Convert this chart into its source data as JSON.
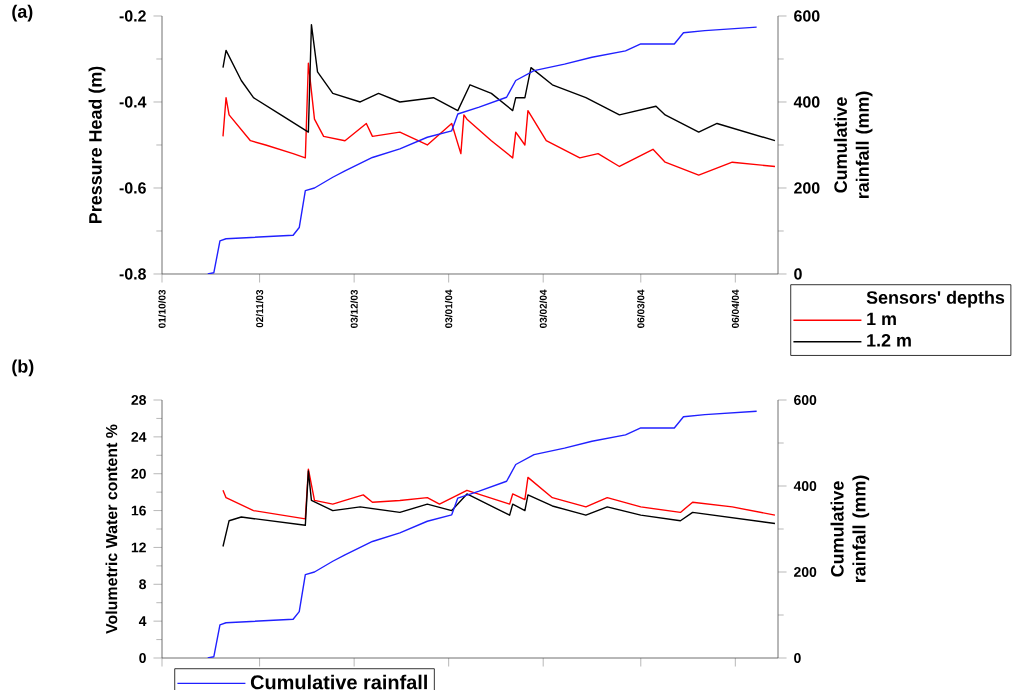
{
  "chart_data": [
    {
      "type": "line",
      "title": "(a)",
      "ylabel": "Pressure Head (m)",
      "y2label": "Cumulative rainfall (mm)",
      "legend_title": "Sensors' depths",
      "legend": "bottom right",
      "xlim": [
        "2003-10-01",
        "2004-04-20"
      ],
      "xticks": [
        {
          "value": "2003-10-01",
          "label": "01/10/03"
        },
        {
          "value": "2003-11-02",
          "label": "02/11/03"
        },
        {
          "value": "2003-12-03",
          "label": "03/12/03"
        },
        {
          "value": "2004-01-03",
          "label": "03/01/04"
        },
        {
          "value": "2004-02-03",
          "label": "03/02/04"
        },
        {
          "value": "2004-03-06",
          "label": "06/03/04"
        },
        {
          "value": "2004-04-06",
          "label": "06/04/04"
        }
      ],
      "ylim": [
        -0.8,
        -0.2
      ],
      "yticks": [
        -0.8,
        -0.6,
        -0.4,
        -0.2
      ],
      "y2lim": [
        0,
        600
      ],
      "y2ticks": [
        0,
        200,
        400,
        600
      ],
      "series": [
        {
          "name": "1 m",
          "color": "#ff0000",
          "x": [
            "2003-10-21",
            "2003-10-22",
            "2003-10-23",
            "2003-10-30",
            "2003-11-04",
            "2003-11-13",
            "2003-11-17",
            "2003-11-18",
            "2003-11-20",
            "2003-11-23",
            "2003-11-30",
            "2003-12-07",
            "2003-12-09",
            "2003-12-18",
            "2003-12-27",
            "2004-01-04",
            "2004-01-07",
            "2004-01-08",
            "2004-01-09",
            "2004-01-17",
            "2004-01-24",
            "2004-01-25",
            "2004-01-28",
            "2004-01-29",
            "2004-02-04",
            "2004-02-15",
            "2004-02-21",
            "2004-02-28",
            "2004-03-10",
            "2004-03-14",
            "2004-03-25",
            "2004-04-05",
            "2004-04-19"
          ],
          "values": [
            -0.48,
            -0.39,
            -0.43,
            -0.49,
            -0.5,
            -0.52,
            -0.53,
            -0.31,
            -0.44,
            -0.48,
            -0.49,
            -0.45,
            -0.48,
            -0.47,
            -0.5,
            -0.45,
            -0.52,
            -0.43,
            -0.44,
            -0.49,
            -0.53,
            -0.47,
            -0.5,
            -0.42,
            -0.49,
            -0.53,
            -0.52,
            -0.55,
            -0.51,
            -0.54,
            -0.57,
            -0.54,
            -0.55
          ]
        },
        {
          "name": "1.2 m",
          "color": "#000000",
          "x": [
            "2003-10-21",
            "2003-10-22",
            "2003-10-27",
            "2003-10-31",
            "2003-11-09",
            "2003-11-18",
            "2003-11-19",
            "2003-11-21",
            "2003-11-26",
            "2003-12-05",
            "2003-12-11",
            "2003-12-18",
            "2003-12-29",
            "2004-01-06",
            "2004-01-10",
            "2004-01-17",
            "2004-01-24",
            "2004-01-25",
            "2004-01-28",
            "2004-01-30",
            "2004-02-06",
            "2004-02-17",
            "2004-02-28",
            "2004-03-11",
            "2004-03-14",
            "2004-03-25",
            "2004-03-31",
            "2004-04-19"
          ],
          "values": [
            -0.32,
            -0.28,
            -0.35,
            -0.39,
            -0.43,
            -0.47,
            -0.22,
            -0.33,
            -0.38,
            -0.4,
            -0.38,
            -0.4,
            -0.39,
            -0.42,
            -0.36,
            -0.38,
            -0.42,
            -0.39,
            -0.39,
            -0.32,
            -0.36,
            -0.39,
            -0.43,
            -0.41,
            -0.43,
            -0.47,
            -0.45,
            -0.49
          ]
        },
        {
          "color": "#2020ff",
          "axis": "y2",
          "x": [
            "2003-10-16",
            "2003-10-18",
            "2003-10-20",
            "2003-10-22",
            "2003-11-13",
            "2003-11-15",
            "2003-11-17",
            "2003-11-20",
            "2003-11-26",
            "2003-11-30",
            "2003-12-09",
            "2003-12-18",
            "2003-12-27",
            "2004-01-04",
            "2004-01-06",
            "2004-01-13",
            "2004-01-22",
            "2004-01-25",
            "2004-01-31",
            "2004-02-10",
            "2004-02-19",
            "2004-03-01",
            "2004-03-06",
            "2004-03-17",
            "2004-03-20",
            "2004-03-27",
            "2004-04-13"
          ],
          "values": [
            0,
            3,
            77,
            82,
            90,
            108,
            194,
            200,
            225,
            240,
            271,
            291,
            318,
            333,
            372,
            388,
            411,
            450,
            473,
            488,
            504,
            519,
            535,
            535,
            561,
            566,
            574
          ]
        }
      ]
    },
    {
      "type": "line",
      "title": "(b)",
      "ylabel": "Volumetric Water content %",
      "y2label": "Cumulative rainfall (mm)",
      "legend": "bottom left",
      "tick_labels": "y",
      "xlim": [
        "2003-10-01",
        "2004-04-20"
      ],
      "xticks": [
        "2003-10-01",
        "2003-11-02",
        "2003-12-03",
        "2004-01-03",
        "2004-02-03",
        "2004-03-06",
        "2004-04-06"
      ],
      "ylim": [
        0,
        28
      ],
      "yticks": [
        0,
        4,
        8,
        12,
        16,
        20,
        24,
        28
      ],
      "y2lim": [
        0,
        600
      ],
      "y2ticks": [
        0,
        200,
        400,
        600
      ],
      "series": [
        {
          "color": "#ff0000",
          "x": [
            "2003-10-21",
            "2003-10-22",
            "2003-10-31",
            "2003-11-17",
            "2003-11-18",
            "2003-11-20",
            "2003-11-26",
            "2003-11-30",
            "2003-12-06",
            "2003-12-09",
            "2003-12-18",
            "2003-12-27",
            "2003-12-31",
            "2004-01-09",
            "2004-01-23",
            "2004-01-24",
            "2004-01-28",
            "2004-01-29",
            "2004-02-06",
            "2004-02-17",
            "2004-02-24",
            "2004-03-06",
            "2004-03-19",
            "2004-03-23",
            "2004-04-05",
            "2004-04-19"
          ],
          "values": [
            18.2,
            17.4,
            16.0,
            15.1,
            20.5,
            17.1,
            16.7,
            17.1,
            17.7,
            16.9,
            17.1,
            17.4,
            16.7,
            18.2,
            16.7,
            17.8,
            17.2,
            19.6,
            17.4,
            16.4,
            17.4,
            16.4,
            15.8,
            16.9,
            16.4,
            15.5
          ]
        },
        {
          "color": "#000000",
          "x": [
            "2003-10-21",
            "2003-10-23",
            "2003-10-27",
            "2003-11-17",
            "2003-11-18",
            "2003-11-19",
            "2003-11-26",
            "2003-12-05",
            "2003-12-18",
            "2003-12-27",
            "2004-01-04",
            "2004-01-09",
            "2004-01-23",
            "2004-01-24",
            "2004-01-28",
            "2004-01-29",
            "2004-02-06",
            "2004-02-17",
            "2004-02-24",
            "2004-03-06",
            "2004-03-19",
            "2004-03-23",
            "2004-04-19"
          ],
          "values": [
            12.1,
            14.9,
            15.3,
            14.4,
            20.3,
            17.1,
            16.0,
            16.4,
            15.8,
            16.7,
            16.0,
            17.8,
            15.5,
            16.7,
            16.0,
            17.7,
            16.5,
            15.5,
            16.4,
            15.5,
            14.9,
            15.8,
            14.6
          ]
        },
        {
          "name": "Cumulative rainfall",
          "color": "#2020ff",
          "axis": "y2",
          "x": [
            "2003-10-16",
            "2003-10-18",
            "2003-10-20",
            "2003-10-22",
            "2003-11-13",
            "2003-11-15",
            "2003-11-17",
            "2003-11-20",
            "2003-11-26",
            "2003-11-30",
            "2003-12-09",
            "2003-12-18",
            "2003-12-27",
            "2004-01-04",
            "2004-01-06",
            "2004-01-13",
            "2004-01-22",
            "2004-01-25",
            "2004-01-31",
            "2004-02-10",
            "2004-02-19",
            "2004-03-01",
            "2004-03-06",
            "2004-03-17",
            "2004-03-20",
            "2004-03-27",
            "2004-04-13"
          ],
          "values": [
            0,
            3,
            77,
            82,
            90,
            108,
            194,
            200,
            225,
            240,
            271,
            291,
            318,
            333,
            372,
            388,
            411,
            450,
            473,
            488,
            504,
            519,
            535,
            535,
            561,
            566,
            574
          ]
        }
      ]
    }
  ]
}
